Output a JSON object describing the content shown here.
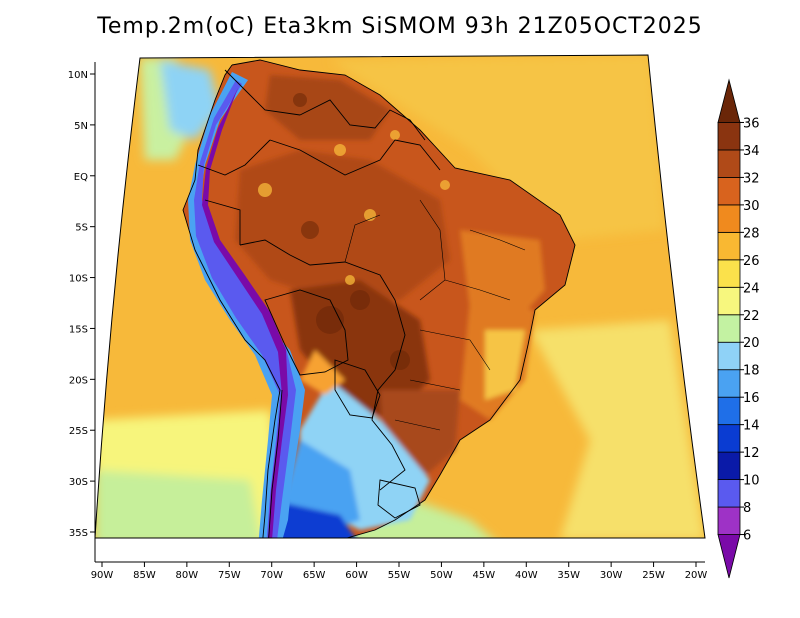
{
  "chart_data": {
    "type": "heatmap",
    "title": "Temp.2m(oC) Eta3km SiSMOM 93h 21Z05OCT2025",
    "variable": "Temp.2m",
    "units": "oC",
    "model": "Eta3km",
    "forecast_hour": "93h",
    "valid_time": "21Z05OCT2025",
    "x_ticks": [
      "90W",
      "85W",
      "80W",
      "75W",
      "70W",
      "65W",
      "60W",
      "55W",
      "50W",
      "45W",
      "40W",
      "35W",
      "30W",
      "25W",
      "20W"
    ],
    "x_tick_values": [
      -90,
      -85,
      -80,
      -75,
      -70,
      -65,
      -60,
      -55,
      -50,
      -45,
      -40,
      -35,
      -30,
      -25,
      -20
    ],
    "y_ticks": [
      "10N",
      "5N",
      "EQ",
      "5S",
      "10S",
      "15S",
      "20S",
      "25S",
      "30S",
      "35S"
    ],
    "y_tick_values": [
      10,
      5,
      0,
      -5,
      -10,
      -15,
      -20,
      -25,
      -30,
      -35
    ],
    "xlim": [
      -90.5,
      -20
    ],
    "ylim": [
      -38,
      11.5
    ],
    "colorbar": {
      "labels": [
        "6",
        "8",
        "10",
        "12",
        "14",
        "16",
        "18",
        "20",
        "22",
        "24",
        "26",
        "28",
        "30",
        "32",
        "34",
        "36"
      ],
      "boundaries": [
        6,
        8,
        10,
        12,
        14,
        16,
        18,
        20,
        22,
        24,
        26,
        28,
        30,
        32,
        34,
        36
      ],
      "colors": [
        "#7a0aa8",
        "#9e32c6",
        "#5a5aef",
        "#0a1aa8",
        "#0a3cd2",
        "#1f6fe8",
        "#4aa2f2",
        "#8fd2f7",
        "#c3f2a2",
        "#f7f77e",
        "#fbe14b",
        "#f9b832",
        "#f08a1e",
        "#d8631e",
        "#b04a18",
        "#8a3410",
        "#6a2608"
      ]
    }
  }
}
